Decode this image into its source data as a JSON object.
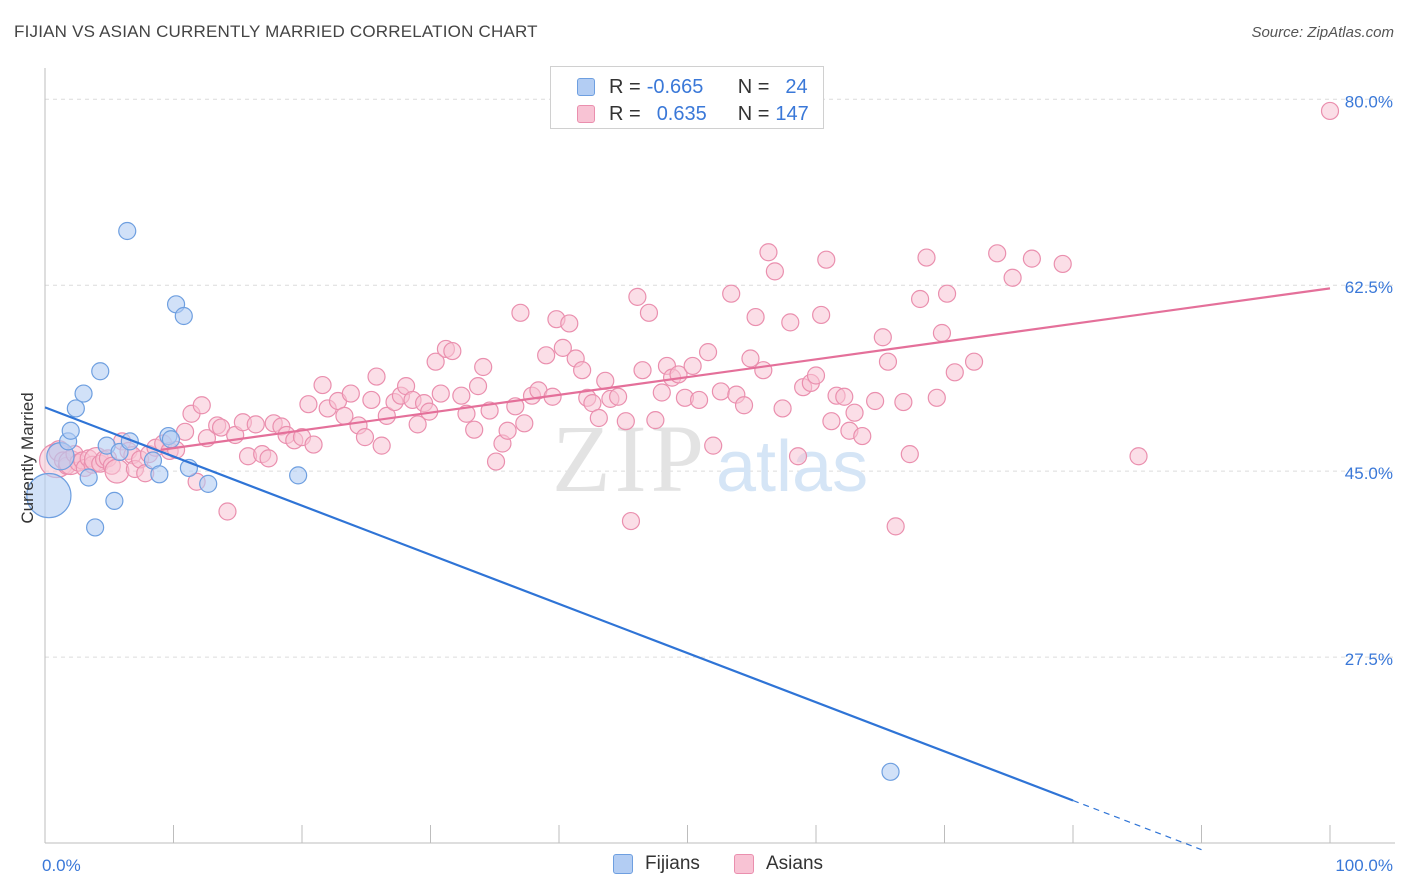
{
  "header": {
    "title": "FIJIAN VS ASIAN CURRENTLY MARRIED CORRELATION CHART",
    "source": "Source: ZipAtlas.com"
  },
  "legend": {
    "r_label": "R =",
    "n_label": "N =",
    "fijians": {
      "r": "-0.665",
      "n": "24"
    },
    "asians": {
      "r": "0.635",
      "n": "147"
    }
  },
  "bottom_legend": {
    "fijians": "Fijians",
    "asians": "Asians"
  },
  "watermark": {
    "zip": "ZIP",
    "atlas": "atlas"
  },
  "colors": {
    "fijian_fill": "#b3cdf3",
    "fijian_stroke": "#6e9fe0",
    "fijian_line": "#2f74d6",
    "asian_fill": "#f8c3d4",
    "asian_stroke": "#ea8fae",
    "asian_line": "#e4709a",
    "tick_label": "#3a78d8"
  },
  "chart_data": {
    "type": "scatter",
    "title": "FIJIAN VS ASIAN CURRENTLY MARRIED CORRELATION CHART",
    "xlabel": "",
    "ylabel": "Currently Married",
    "xlim": [
      0,
      100
    ],
    "ylim": [
      10,
      82
    ],
    "x_tick_labels": [
      "0.0%",
      "100.0%"
    ],
    "y_ticks": [
      27.5,
      45.0,
      62.5,
      80.0
    ],
    "y_tick_labels": [
      "27.5%",
      "45.0%",
      "62.5%",
      "80.0%"
    ],
    "grid": true,
    "legend_position": "top-center",
    "series": [
      {
        "name": "Fijians",
        "r": -0.665,
        "n": 24,
        "trend": {
          "x0": 0,
          "y0": 51.0,
          "x1": 80,
          "y1": 14.0,
          "dashed_to": 90
        },
        "points": [
          [
            0.3,
            42.7,
            2.6
          ],
          [
            1.2,
            46.4,
            1.6
          ],
          [
            1.8,
            47.8,
            1.0
          ],
          [
            2.0,
            48.8,
            1.0
          ],
          [
            2.4,
            50.9,
            1.0
          ],
          [
            3.0,
            52.3,
            1.0
          ],
          [
            3.4,
            44.4,
            1.0
          ],
          [
            3.9,
            39.7,
            1.0
          ],
          [
            4.3,
            54.4,
            1.0
          ],
          [
            4.8,
            47.4,
            1.0
          ],
          [
            5.4,
            42.2,
            1.0
          ],
          [
            5.8,
            46.8,
            1.0
          ],
          [
            6.6,
            47.8,
            1.0
          ],
          [
            6.4,
            67.6,
            1.0
          ],
          [
            8.4,
            46.0,
            1.0
          ],
          [
            8.9,
            44.7,
            1.0
          ],
          [
            9.6,
            48.3,
            1.0
          ],
          [
            9.8,
            48.0,
            1.0
          ],
          [
            10.2,
            60.7,
            1.0
          ],
          [
            10.8,
            59.6,
            1.0
          ],
          [
            11.2,
            45.3,
            1.0
          ],
          [
            12.7,
            43.8,
            1.0
          ],
          [
            19.7,
            44.6,
            1.0
          ],
          [
            65.8,
            16.7,
            1.0
          ]
        ]
      },
      {
        "name": "Asians",
        "r": 0.635,
        "n": 147,
        "trend": {
          "x0": 9.0,
          "y0": 47.0,
          "x1": 100,
          "y1": 62.2
        },
        "points": [
          [
            0.9,
            46.0,
            2.0
          ],
          [
            1.1,
            46.9,
            1.2
          ],
          [
            1.4,
            46.0,
            1.0
          ],
          [
            1.7,
            45.5,
            1.0
          ],
          [
            2.0,
            45.8,
            1.4
          ],
          [
            2.3,
            46.6,
            1.0
          ],
          [
            2.6,
            45.8,
            1.0
          ],
          [
            2.9,
            46.0,
            1.0
          ],
          [
            3.1,
            45.3,
            1.0
          ],
          [
            3.4,
            46.2,
            1.0
          ],
          [
            3.7,
            45.6,
            1.0
          ],
          [
            4.0,
            46.1,
            1.4
          ],
          [
            4.3,
            45.7,
            1.0
          ],
          [
            4.6,
            46.1,
            1.0
          ],
          [
            4.9,
            46.2,
            1.0
          ],
          [
            5.2,
            45.5,
            1.0
          ],
          [
            5.6,
            45.0,
            1.4
          ],
          [
            6.0,
            47.8,
            1.0
          ],
          [
            6.5,
            46.9,
            1.0
          ],
          [
            6.8,
            46.5,
            1.0
          ],
          [
            7.0,
            45.2,
            1.0
          ],
          [
            7.4,
            46.1,
            1.0
          ],
          [
            7.8,
            44.8,
            1.0
          ],
          [
            8.1,
            46.6,
            1.0
          ],
          [
            8.6,
            47.2,
            1.0
          ],
          [
            9.2,
            47.6,
            1.0
          ],
          [
            9.7,
            46.9,
            1.0
          ],
          [
            10.2,
            47.0,
            1.0
          ],
          [
            10.9,
            48.7,
            1.0
          ],
          [
            11.4,
            50.4,
            1.0
          ],
          [
            11.8,
            44.0,
            1.0
          ],
          [
            12.2,
            51.2,
            1.0
          ],
          [
            12.6,
            48.1,
            1.0
          ],
          [
            13.4,
            49.3,
            1.0
          ],
          [
            13.7,
            49.1,
            1.0
          ],
          [
            14.2,
            41.2,
            1.0
          ],
          [
            14.8,
            48.4,
            1.0
          ],
          [
            15.4,
            49.6,
            1.0
          ],
          [
            15.8,
            46.4,
            1.0
          ],
          [
            16.4,
            49.4,
            1.0
          ],
          [
            16.9,
            46.6,
            1.0
          ],
          [
            17.4,
            46.2,
            1.0
          ],
          [
            17.8,
            49.5,
            1.0
          ],
          [
            18.4,
            49.2,
            1.0
          ],
          [
            18.8,
            48.4,
            1.0
          ],
          [
            19.4,
            47.9,
            1.0
          ],
          [
            20.0,
            48.2,
            1.0
          ],
          [
            20.5,
            51.3,
            1.0
          ],
          [
            20.9,
            47.5,
            1.0
          ],
          [
            21.6,
            53.1,
            1.0
          ],
          [
            22.0,
            50.9,
            1.0
          ],
          [
            22.8,
            51.6,
            1.0
          ],
          [
            23.3,
            50.2,
            1.0
          ],
          [
            23.8,
            52.3,
            1.0
          ],
          [
            24.4,
            49.3,
            1.0
          ],
          [
            24.9,
            48.2,
            1.0
          ],
          [
            25.4,
            51.7,
            1.0
          ],
          [
            25.8,
            53.9,
            1.0
          ],
          [
            26.2,
            47.4,
            1.0
          ],
          [
            26.6,
            50.2,
            1.0
          ],
          [
            27.2,
            51.5,
            1.0
          ],
          [
            27.7,
            52.1,
            1.0
          ],
          [
            28.1,
            53.0,
            1.0
          ],
          [
            28.6,
            51.7,
            1.0
          ],
          [
            29.0,
            49.4,
            1.0
          ],
          [
            29.5,
            51.4,
            1.0
          ],
          [
            29.9,
            50.6,
            1.0
          ],
          [
            30.4,
            55.3,
            1.0
          ],
          [
            30.8,
            52.3,
            1.0
          ],
          [
            31.2,
            56.5,
            1.0
          ],
          [
            31.7,
            56.3,
            1.0
          ],
          [
            32.4,
            52.1,
            1.0
          ],
          [
            32.8,
            50.4,
            1.0
          ],
          [
            33.4,
            48.9,
            1.0
          ],
          [
            33.7,
            53.0,
            1.0
          ],
          [
            34.1,
            54.8,
            1.0
          ],
          [
            34.6,
            50.7,
            1.0
          ],
          [
            35.1,
            45.9,
            1.0
          ],
          [
            35.6,
            47.6,
            1.0
          ],
          [
            36.0,
            48.8,
            1.0
          ],
          [
            36.6,
            51.1,
            1.0
          ],
          [
            37.0,
            59.9,
            1.0
          ],
          [
            37.3,
            49.5,
            1.0
          ],
          [
            37.9,
            52.1,
            1.0
          ],
          [
            38.4,
            52.6,
            1.0
          ],
          [
            39.0,
            55.9,
            1.0
          ],
          [
            39.5,
            52.0,
            1.0
          ],
          [
            39.8,
            59.3,
            1.0
          ],
          [
            40.3,
            56.6,
            1.0
          ],
          [
            40.8,
            58.9,
            1.0
          ],
          [
            41.3,
            55.6,
            1.0
          ],
          [
            41.8,
            54.5,
            1.0
          ],
          [
            42.2,
            51.9,
            1.0
          ],
          [
            42.6,
            51.4,
            1.0
          ],
          [
            43.1,
            50.0,
            1.0
          ],
          [
            43.6,
            53.5,
            1.0
          ],
          [
            44.0,
            51.8,
            1.0
          ],
          [
            44.6,
            52.0,
            1.0
          ],
          [
            45.2,
            49.7,
            1.0
          ],
          [
            45.6,
            40.3,
            1.0
          ],
          [
            46.1,
            61.4,
            1.0
          ],
          [
            46.5,
            54.5,
            1.0
          ],
          [
            47.0,
            59.9,
            1.0
          ],
          [
            47.5,
            49.8,
            1.0
          ],
          [
            48.0,
            52.4,
            1.0
          ],
          [
            48.4,
            54.9,
            1.0
          ],
          [
            48.8,
            53.8,
            1.0
          ],
          [
            49.3,
            54.1,
            1.0
          ],
          [
            49.8,
            51.9,
            1.0
          ],
          [
            50.4,
            54.9,
            1.0
          ],
          [
            50.9,
            51.7,
            1.0
          ],
          [
            51.6,
            56.2,
            1.0
          ],
          [
            52.0,
            47.4,
            1.0
          ],
          [
            52.6,
            52.5,
            1.0
          ],
          [
            53.4,
            61.7,
            1.0
          ],
          [
            53.8,
            52.2,
            1.0
          ],
          [
            54.4,
            51.2,
            1.0
          ],
          [
            54.9,
            55.6,
            1.0
          ],
          [
            55.3,
            59.5,
            1.0
          ],
          [
            55.9,
            54.5,
            1.0
          ],
          [
            56.3,
            65.6,
            1.0
          ],
          [
            56.8,
            63.8,
            1.0
          ],
          [
            57.4,
            50.9,
            1.0
          ],
          [
            58.0,
            59.0,
            1.0
          ],
          [
            58.6,
            46.4,
            1.0
          ],
          [
            59.0,
            52.9,
            1.0
          ],
          [
            59.6,
            53.3,
            1.0
          ],
          [
            60.0,
            54.0,
            1.0
          ],
          [
            60.4,
            59.7,
            1.0
          ],
          [
            60.8,
            64.9,
            1.0
          ],
          [
            61.2,
            49.7,
            1.0
          ],
          [
            61.6,
            52.1,
            1.0
          ],
          [
            62.2,
            52.0,
            1.0
          ],
          [
            62.6,
            48.8,
            1.0
          ],
          [
            63.0,
            50.5,
            1.0
          ],
          [
            63.6,
            48.3,
            1.0
          ],
          [
            64.6,
            51.6,
            1.0
          ],
          [
            65.2,
            57.6,
            1.0
          ],
          [
            65.6,
            55.3,
            1.0
          ],
          [
            66.2,
            39.8,
            1.0
          ],
          [
            66.8,
            51.5,
            1.0
          ],
          [
            67.3,
            46.6,
            1.0
          ],
          [
            68.1,
            61.2,
            1.0
          ],
          [
            68.6,
            65.1,
            1.0
          ],
          [
            69.4,
            51.9,
            1.0
          ],
          [
            69.8,
            58.0,
            1.0
          ],
          [
            70.2,
            61.7,
            1.0
          ],
          [
            70.8,
            54.3,
            1.0
          ],
          [
            72.3,
            55.3,
            1.0
          ],
          [
            74.1,
            65.5,
            1.0
          ],
          [
            75.3,
            63.2,
            1.0
          ],
          [
            76.8,
            65.0,
            1.0
          ],
          [
            79.2,
            64.5,
            1.0
          ],
          [
            85.1,
            46.4,
            1.0
          ],
          [
            100.0,
            78.9,
            1.0
          ]
        ]
      }
    ]
  }
}
